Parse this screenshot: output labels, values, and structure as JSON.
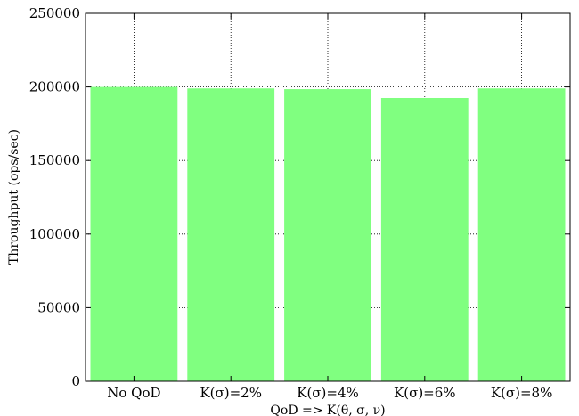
{
  "chart_data": {
    "type": "bar",
    "categories": [
      "No QoD",
      "K(σ)=2%",
      "K(σ)=4%",
      "K(σ)=6%",
      "K(σ)=8%"
    ],
    "values": [
      200000,
      199000,
      198500,
      192500,
      199000
    ],
    "bar_color": "#80ff80",
    "xlabel": "QoD => K(θ, σ, ν)",
    "ylabel": "Throughput (ops/sec)",
    "ylim": [
      0,
      250000
    ],
    "yticks": [
      0,
      50000,
      100000,
      150000,
      200000,
      250000
    ],
    "ytick_labels": [
      "0",
      "50000",
      "100000",
      "150000",
      "200000",
      "250000"
    ],
    "grid": true,
    "legend": "none"
  }
}
